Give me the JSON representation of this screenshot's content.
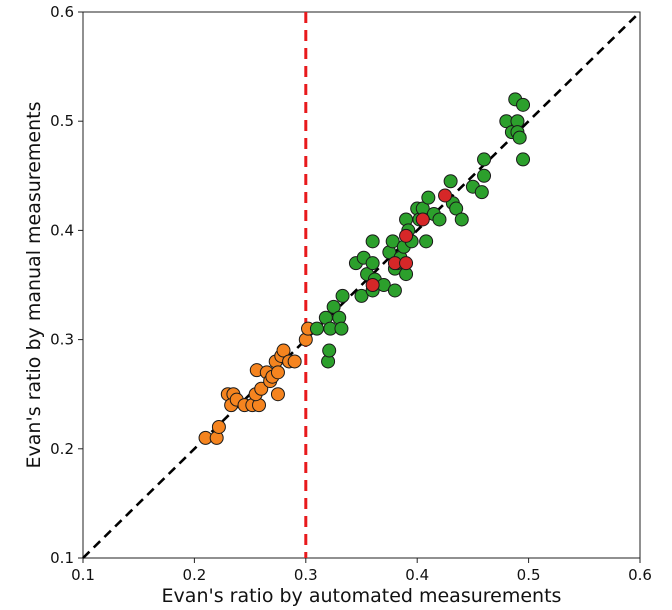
{
  "chart_data": {
    "type": "scatter",
    "title": "",
    "xlabel": "Evan's ratio by automated measurements",
    "ylabel": "Evan's ratio by manual measurements",
    "xlim": [
      0.1,
      0.6
    ],
    "ylim": [
      0.1,
      0.6
    ],
    "xticks": [
      "0.1",
      "0.2",
      "0.3",
      "0.4",
      "0.5",
      "0.6"
    ],
    "yticks": [
      "0.1",
      "0.2",
      "0.3",
      "0.4",
      "0.5",
      "0.6"
    ],
    "grid": false,
    "legend": "none",
    "reference_lines": [
      {
        "kind": "identity",
        "from": [
          0.1,
          0.1
        ],
        "to": [
          0.6,
          0.6
        ],
        "color": "#000000",
        "style": "dashed"
      },
      {
        "kind": "vertical",
        "x": 0.3,
        "color": "#e8191c",
        "style": "dashed"
      }
    ],
    "series": [
      {
        "color": "#f5841f",
        "points": [
          [
            0.21,
            0.21
          ],
          [
            0.22,
            0.21
          ],
          [
            0.222,
            0.22
          ],
          [
            0.23,
            0.25
          ],
          [
            0.235,
            0.25
          ],
          [
            0.233,
            0.24
          ],
          [
            0.238,
            0.245
          ],
          [
            0.245,
            0.24
          ],
          [
            0.252,
            0.24
          ],
          [
            0.258,
            0.24
          ],
          [
            0.255,
            0.25
          ],
          [
            0.26,
            0.255
          ],
          [
            0.256,
            0.272
          ],
          [
            0.265,
            0.27
          ],
          [
            0.268,
            0.262
          ],
          [
            0.27,
            0.266
          ],
          [
            0.273,
            0.28
          ],
          [
            0.275,
            0.27
          ],
          [
            0.275,
            0.25
          ],
          [
            0.278,
            0.285
          ],
          [
            0.28,
            0.29
          ],
          [
            0.285,
            0.28
          ],
          [
            0.29,
            0.28
          ],
          [
            0.3,
            0.3
          ],
          [
            0.302,
            0.31
          ]
        ]
      },
      {
        "color": "#2ca02c",
        "points": [
          [
            0.31,
            0.31
          ],
          [
            0.318,
            0.32
          ],
          [
            0.32,
            0.28
          ],
          [
            0.321,
            0.29
          ],
          [
            0.322,
            0.31
          ],
          [
            0.325,
            0.33
          ],
          [
            0.33,
            0.32
          ],
          [
            0.332,
            0.31
          ],
          [
            0.333,
            0.34
          ],
          [
            0.345,
            0.37
          ],
          [
            0.35,
            0.34
          ],
          [
            0.352,
            0.375
          ],
          [
            0.355,
            0.36
          ],
          [
            0.36,
            0.37
          ],
          [
            0.36,
            0.345
          ],
          [
            0.36,
            0.39
          ],
          [
            0.362,
            0.355
          ],
          [
            0.37,
            0.35
          ],
          [
            0.375,
            0.38
          ],
          [
            0.378,
            0.39
          ],
          [
            0.38,
            0.365
          ],
          [
            0.38,
            0.345
          ],
          [
            0.382,
            0.37
          ],
          [
            0.385,
            0.375
          ],
          [
            0.388,
            0.385
          ],
          [
            0.39,
            0.36
          ],
          [
            0.39,
            0.41
          ],
          [
            0.392,
            0.4
          ],
          [
            0.395,
            0.39
          ],
          [
            0.4,
            0.42
          ],
          [
            0.402,
            0.41
          ],
          [
            0.405,
            0.42
          ],
          [
            0.408,
            0.39
          ],
          [
            0.41,
            0.43
          ],
          [
            0.415,
            0.415
          ],
          [
            0.42,
            0.41
          ],
          [
            0.43,
            0.445
          ],
          [
            0.432,
            0.425
          ],
          [
            0.435,
            0.42
          ],
          [
            0.44,
            0.41
          ],
          [
            0.45,
            0.44
          ],
          [
            0.458,
            0.435
          ],
          [
            0.46,
            0.465
          ],
          [
            0.46,
            0.45
          ],
          [
            0.48,
            0.5
          ],
          [
            0.485,
            0.49
          ],
          [
            0.488,
            0.52
          ],
          [
            0.49,
            0.5
          ],
          [
            0.49,
            0.49
          ],
          [
            0.492,
            0.485
          ],
          [
            0.495,
            0.515
          ],
          [
            0.495,
            0.465
          ]
        ]
      },
      {
        "color": "#d62728",
        "points": [
          [
            0.36,
            0.35
          ],
          [
            0.38,
            0.37
          ],
          [
            0.39,
            0.37
          ],
          [
            0.39,
            0.395
          ],
          [
            0.405,
            0.41
          ],
          [
            0.425,
            0.432
          ]
        ]
      }
    ]
  }
}
